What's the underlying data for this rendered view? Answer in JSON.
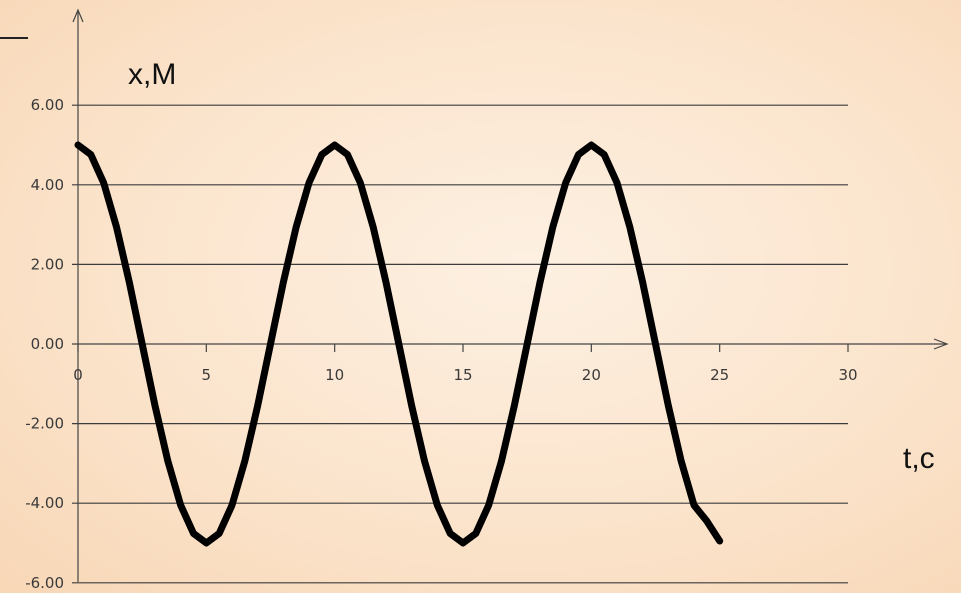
{
  "chart_data": {
    "type": "line",
    "title": "",
    "xlabel": "t,c",
    "ylabel": "x,M",
    "xlim": [
      0,
      30
    ],
    "ylim": [
      -6,
      6
    ],
    "x_ticks": [
      0,
      5,
      10,
      15,
      20,
      25,
      30
    ],
    "x_tick_labels": [
      "0",
      "5",
      "10",
      "15",
      "20",
      "25",
      "30"
    ],
    "y_ticks": [
      6,
      4,
      2,
      0,
      -2,
      -4,
      -6
    ],
    "y_tick_labels": [
      "6.00",
      "4.00",
      "2.00",
      "0.00",
      "-2.00",
      "-4.00",
      "-6.00"
    ],
    "grid": "horizontal",
    "legend": "none",
    "series": [
      {
        "color": "#000000",
        "x": [
          0,
          0.5,
          1,
          1.5,
          2,
          2.5,
          3,
          3.5,
          4,
          4.5,
          5,
          5.5,
          6,
          6.5,
          7,
          7.5,
          8,
          8.5,
          9,
          9.5,
          10,
          10.5,
          11,
          11.5,
          12,
          12.5,
          13,
          13.5,
          14,
          14.5,
          15,
          15.5,
          16,
          16.5,
          17,
          17.5,
          18,
          18.5,
          19,
          19.5,
          20,
          20.5,
          21,
          21.5,
          22,
          22.5,
          23,
          23.5,
          24,
          24.5,
          25
        ],
        "values": [
          5.0,
          4.76,
          4.05,
          2.94,
          1.55,
          0.0,
          -1.55,
          -2.94,
          -4.05,
          -4.76,
          -5.0,
          -4.76,
          -4.05,
          -2.94,
          -1.55,
          0.0,
          1.55,
          2.94,
          4.05,
          4.76,
          5.0,
          4.76,
          4.05,
          2.94,
          1.55,
          0.0,
          -1.55,
          -2.94,
          -4.05,
          -4.76,
          -5.0,
          -4.76,
          -4.05,
          -2.94,
          -1.55,
          0.0,
          1.55,
          2.94,
          4.05,
          4.76,
          5.0,
          4.76,
          4.05,
          2.94,
          1.55,
          0.0,
          -1.55,
          -2.94,
          -4.05,
          -4.45,
          -4.95
        ]
      }
    ]
  }
}
